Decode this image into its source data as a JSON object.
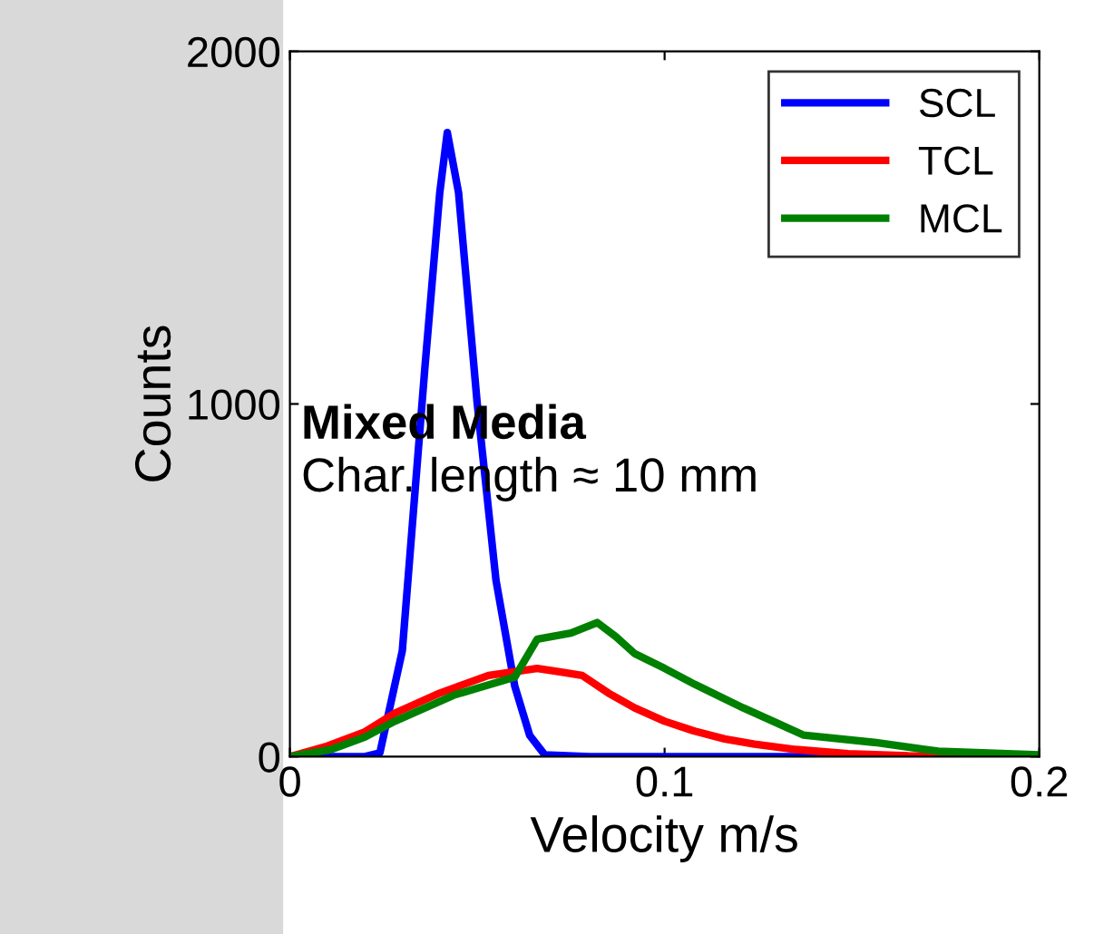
{
  "chart_data": {
    "type": "line",
    "xlabel": "Velocity m/s",
    "ylabel": "Counts",
    "xlim": [
      0,
      0.2
    ],
    "ylim": [
      0,
      2000
    ],
    "xticks": [
      0,
      0.1,
      0.2
    ],
    "yticks": [
      0,
      1000,
      2000
    ],
    "grid": false,
    "legend": "top right",
    "marker": "none",
    "line_style": "solid",
    "annotations": [
      "Mixed Media",
      "Char. length ≈ 10 mm"
    ],
    "series": [
      {
        "name": "SCL",
        "color": "#0000ff",
        "x": [
          0,
          0.02,
          0.024,
          0.03,
          0.036,
          0.04,
          0.042,
          0.045,
          0.05,
          0.055,
          0.06,
          0.064,
          0.068,
          0.08,
          0.2
        ],
        "values": [
          0,
          0,
          10,
          300,
          1100,
          1600,
          1770,
          1600,
          1000,
          500,
          200,
          60,
          5,
          0,
          0
        ]
      },
      {
        "name": "TCL",
        "color": "#ff0000",
        "x": [
          0,
          0.01,
          0.02,
          0.028,
          0.04,
          0.053,
          0.066,
          0.072,
          0.078,
          0.085,
          0.092,
          0.1,
          0.108,
          0.116,
          0.124,
          0.135,
          0.149,
          0.165,
          0.2
        ],
        "values": [
          0,
          30,
          70,
          123,
          180,
          230,
          250,
          240,
          230,
          180,
          138,
          100,
          72,
          50,
          35,
          20,
          8,
          2,
          0
        ]
      },
      {
        "name": "MCL",
        "color": "#008000",
        "x": [
          0,
          0.011,
          0.02,
          0.028,
          0.044,
          0.06,
          0.066,
          0.075,
          0.082,
          0.087,
          0.092,
          0.1,
          0.108,
          0.121,
          0.13,
          0.137,
          0.156,
          0.173,
          0.2
        ],
        "values": [
          0,
          20,
          55,
          100,
          175,
          225,
          333,
          350,
          380,
          340,
          292,
          250,
          205,
          138,
          95,
          61,
          40,
          15,
          5
        ]
      }
    ]
  }
}
